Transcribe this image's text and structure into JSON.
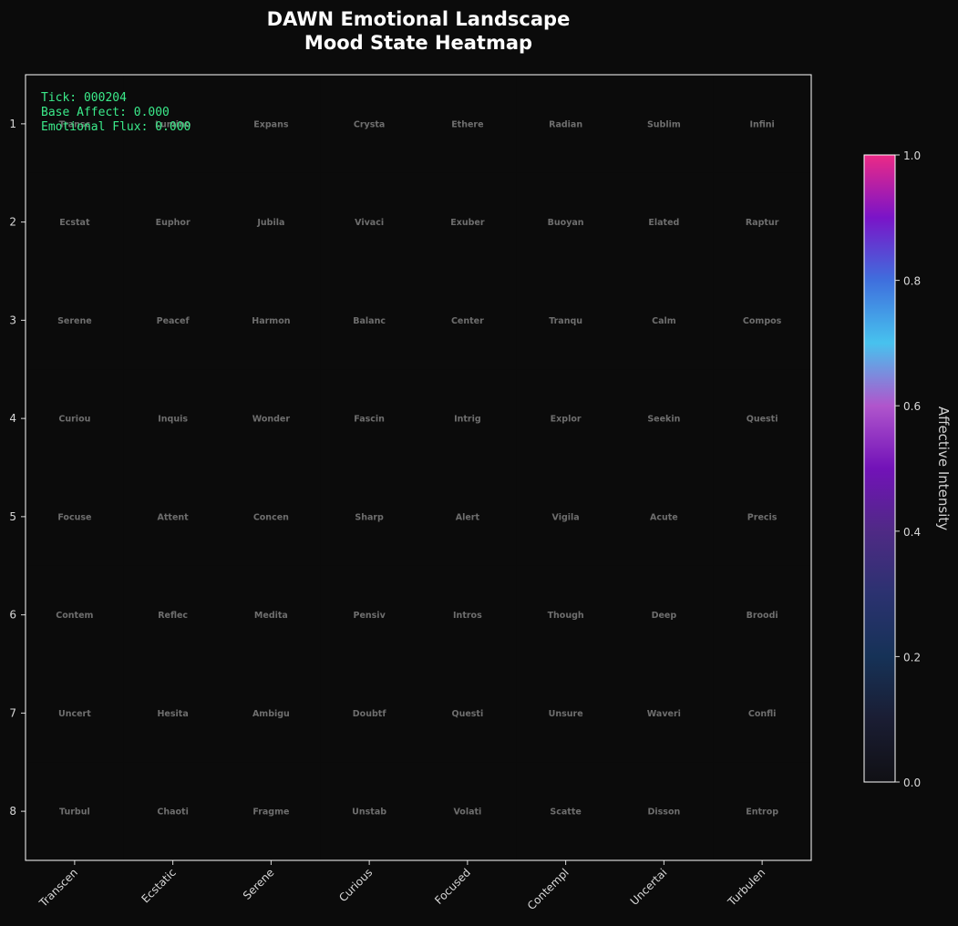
{
  "title": {
    "line1": "DAWN Emotional Landscape",
    "line2": "Mood State Heatmap"
  },
  "status": {
    "tick": "Tick: 000204",
    "base_affect": "Base Affect: 0.000",
    "flux": "Emotional Flux: 0.000"
  },
  "colors": {
    "background": "#0b0b0b",
    "panel": "#0b0b0b",
    "frame": "#ffffff",
    "cell_label": "#6e6e6e",
    "overlay_text": "#3bea8a",
    "colormap": [
      "#101014",
      "#1a1d33",
      "#163257",
      "#2b3270",
      "#4f2a85",
      "#7212b8",
      "#b055cc",
      "#47c2ee",
      "#3f6fdd",
      "#7a14c8",
      "#ec2a86"
    ]
  },
  "chart_data": {
    "type": "heatmap",
    "title": "DAWN Emotional Landscape\nMood State Heatmap",
    "x_tick_labels": [
      "Transcen",
      "Ecstatic",
      "Serene",
      "Curious",
      "Focused",
      "Contempl",
      "Uncertai",
      "Turbulen"
    ],
    "y_tick_labels": [
      "1",
      "2",
      "3",
      "4",
      "5",
      "6",
      "7",
      "8"
    ],
    "cell_labels": [
      [
        "Transc",
        "Lumino",
        "Expans",
        "Crysta",
        "Ethere",
        "Radian",
        "Sublim",
        "Infini"
      ],
      [
        "Ecstat",
        "Euphor",
        "Jubila",
        "Vivaci",
        "Exuber",
        "Buoyan",
        "Elated",
        "Raptur"
      ],
      [
        "Serene",
        "Peacef",
        "Harmon",
        "Balanc",
        "Center",
        "Tranqu",
        "Calm",
        "Compos"
      ],
      [
        "Curiou",
        "Inquis",
        "Wonder",
        "Fascin",
        "Intrig",
        "Explor",
        "Seekin",
        "Questi"
      ],
      [
        "Focuse",
        "Attent",
        "Concen",
        "Sharp",
        "Alert",
        "Vigila",
        "Acute",
        "Precis"
      ],
      [
        "Contem",
        "Reflec",
        "Medita",
        "Pensiv",
        "Intros",
        "Though",
        "Deep",
        "Broodi"
      ],
      [
        "Uncert",
        "Hesita",
        "Ambigu",
        "Doubtf",
        "Questi",
        "Unsure",
        "Waveri",
        "Confli"
      ],
      [
        "Turbul",
        "Chaoti",
        "Fragme",
        "Unstab",
        "Volati",
        "Scatte",
        "Disson",
        "Entrop"
      ]
    ],
    "values": [
      [
        0,
        0,
        0,
        0,
        0,
        0,
        0,
        0
      ],
      [
        0,
        0,
        0,
        0,
        0,
        0,
        0,
        0
      ],
      [
        0,
        0,
        0,
        0,
        0,
        0,
        0,
        0
      ],
      [
        0,
        0,
        0,
        0,
        0,
        0,
        0,
        0
      ],
      [
        0,
        0,
        0,
        0,
        0,
        0,
        0,
        0
      ],
      [
        0,
        0,
        0,
        0,
        0,
        0,
        0,
        0
      ],
      [
        0,
        0,
        0,
        0,
        0,
        0,
        0,
        0
      ],
      [
        0,
        0,
        0,
        0,
        0,
        0,
        0,
        0
      ]
    ],
    "colorbar": {
      "label": "Affective Intensity",
      "range": [
        0,
        1
      ],
      "ticks": [
        "0.0",
        "0.2",
        "0.4",
        "0.6",
        "0.8",
        "1.0"
      ]
    }
  }
}
